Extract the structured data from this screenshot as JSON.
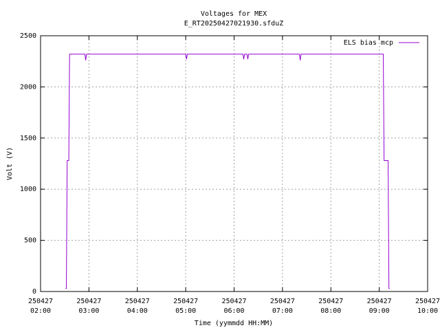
{
  "chart_data": {
    "type": "line",
    "title": "Voltages for MEX",
    "subtitle": "E_RT20250427021930.sfduZ",
    "x_label": "Time (yymmdd HH:MM)",
    "y_label": "Volt (V)",
    "x": [
      "250427 02:31",
      "250427 02:32",
      "250427 02:33",
      "250427 02:35",
      "250427 02:36",
      "250427 02:55",
      "250427 02:56",
      "250427 02:57",
      "250427 05:00",
      "250427 05:01",
      "250427 05:02",
      "250427 06:11",
      "250427 06:12",
      "250427 06:13",
      "250427 06:16",
      "250427 06:17",
      "250427 06:18",
      "250427 07:21",
      "250427 07:22",
      "250427 07:23",
      "250427 09:05",
      "250427 09:06",
      "250427 09:11",
      "250427 09:12",
      "250427 09:13"
    ],
    "series": [
      {
        "name": "ELS bias mcp",
        "color": "#9400d3",
        "values": [
          30,
          30,
          1280,
          1280,
          2320,
          2320,
          2260,
          2320,
          2320,
          2270,
          2320,
          2320,
          2270,
          2320,
          2320,
          2270,
          2320,
          2320,
          2260,
          2320,
          2320,
          1280,
          1280,
          30,
          30
        ]
      }
    ],
    "xlim": [
      "250427 02:00",
      "250427 10:00"
    ],
    "xticks": [
      "250427 02:00",
      "250427 03:00",
      "250427 04:00",
      "250427 05:00",
      "250427 06:00",
      "250427 07:00",
      "250427 08:00",
      "250427 09:00",
      "250427 10:00"
    ],
    "ylim": [
      0,
      2500
    ],
    "yticks": [
      0,
      500,
      1000,
      1500,
      2000,
      2500
    ],
    "grid": true,
    "legend": "top-right"
  }
}
